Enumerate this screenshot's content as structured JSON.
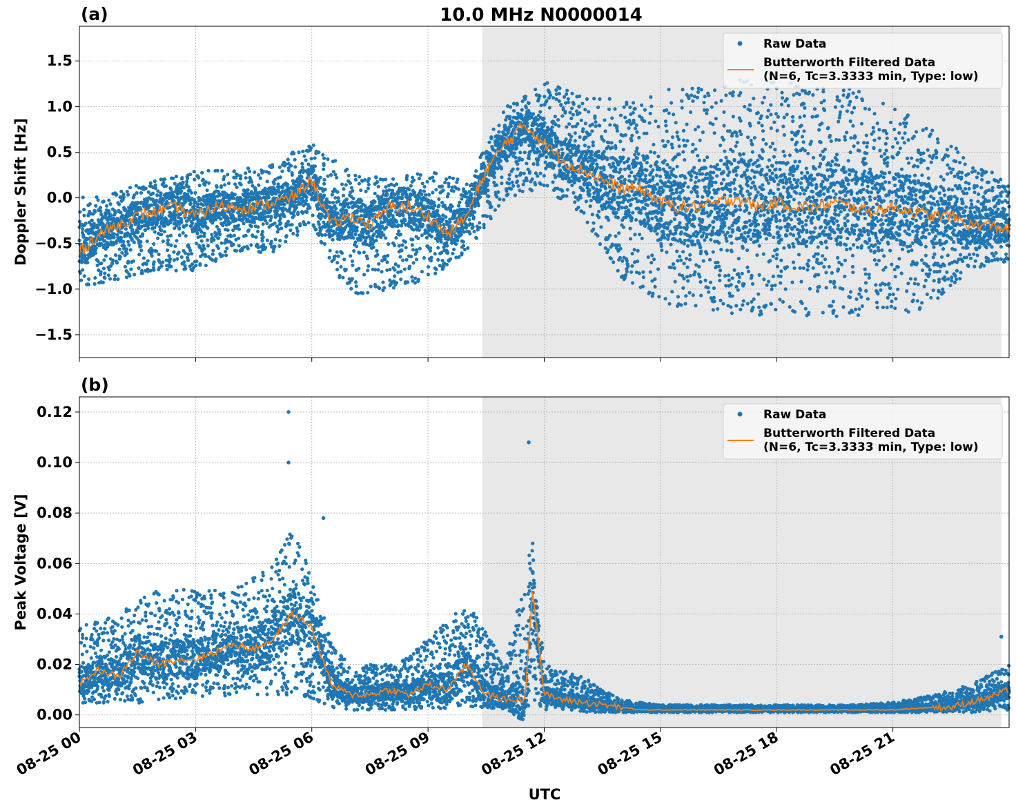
{
  "chart_data": {
    "type": "scatter",
    "title": "10.0 MHz N0000014",
    "xlabel": "UTC",
    "x_ticks": [
      "08-25 00",
      "08-25 03",
      "08-25 06",
      "08-25 09",
      "08-25 12",
      "08-25 15",
      "08-25 18",
      "08-25 21"
    ],
    "x_range_hours": [
      0,
      24
    ],
    "shaded_region_hours": [
      10.4,
      23.8
    ],
    "colors": {
      "raw": "#1f77b4",
      "filtered": "#ff7f0e",
      "shade": "#e8e8e8",
      "grid": "#b0b0b0"
    },
    "grid": true,
    "legend_placement": "upper right",
    "legend": {
      "raw_label": "Raw Data",
      "filtered_label_line1": "Butterworth Filtered Data",
      "filtered_label_line2": "(N=6, Tc=3.3333 min, Type: low)"
    },
    "panels": [
      {
        "label": "(a)",
        "ylabel": "Doppler Shift [Hz]",
        "ylim": [
          -1.75,
          1.88
        ],
        "y_ticks": [
          "1.5",
          "1.0",
          "0.5",
          "0.0",
          "−0.5",
          "−1.0",
          "−1.5"
        ],
        "y_tick_values": [
          1.5,
          1.0,
          0.5,
          0.0,
          -0.5,
          -1.0,
          -1.5
        ],
        "filtered": {
          "x_hours": [
            0,
            0.5,
            1,
            1.5,
            2,
            2.5,
            3,
            3.5,
            4,
            4.5,
            5,
            5.5,
            6,
            6.5,
            7,
            7.5,
            8,
            8.5,
            9,
            9.5,
            10,
            10.5,
            11,
            11.5,
            12,
            12.5,
            13,
            13.5,
            14,
            14.5,
            15,
            15.5,
            16,
            16.5,
            17,
            17.5,
            18,
            18.5,
            19,
            19.5,
            20,
            20.5,
            21,
            21.5,
            22,
            22.5,
            23,
            23.5,
            24
          ],
          "y": [
            -0.6,
            -0.4,
            -0.3,
            -0.2,
            -0.15,
            -0.1,
            -0.2,
            -0.1,
            -0.1,
            -0.1,
            -0.05,
            0,
            0.2,
            -0.3,
            -0.2,
            -0.3,
            -0.1,
            -0.1,
            -0.2,
            -0.4,
            -0.2,
            0.3,
            0.6,
            0.8,
            0.6,
            0.4,
            0.3,
            0.2,
            0.1,
            0.1,
            -0.05,
            -0.1,
            -0.1,
            -0.05,
            0,
            -0.1,
            -0.05,
            -0.1,
            -0.1,
            -0.05,
            -0.1,
            -0.15,
            -0.1,
            -0.15,
            -0.2,
            -0.2,
            -0.3,
            -0.3,
            -0.35
          ]
        },
        "raw_envelope": {
          "x_hours": [
            0,
            1,
            2,
            3,
            4,
            5,
            6,
            7,
            8,
            9,
            10,
            11,
            12,
            13,
            14,
            15,
            16,
            17,
            18,
            19,
            20,
            21,
            22,
            23,
            24
          ],
          "low": [
            -1.0,
            -0.9,
            -0.8,
            -0.8,
            -0.6,
            -0.6,
            -0.3,
            -1.1,
            -1.0,
            -0.9,
            -0.6,
            0.0,
            0.1,
            -0.2,
            -0.9,
            -1.2,
            -1.2,
            -1.3,
            -1.3,
            -1.3,
            -1.3,
            -1.3,
            -1.2,
            -0.8,
            -0.7
          ],
          "high": [
            0.0,
            0.1,
            0.2,
            0.3,
            0.3,
            0.4,
            0.6,
            0.3,
            0.2,
            0.3,
            0.2,
            1.0,
            1.3,
            1.1,
            1.1,
            1.2,
            1.2,
            1.3,
            1.3,
            1.2,
            1.2,
            1.0,
            0.8,
            0.4,
            0.2
          ]
        }
      },
      {
        "label": "(b)",
        "ylabel": "Peak Voltage [V]",
        "ylim": [
          -0.005,
          0.126
        ],
        "y_ticks": [
          "0.12",
          "0.10",
          "0.08",
          "0.06",
          "0.04",
          "0.02",
          "0.00"
        ],
        "y_tick_values": [
          0.12,
          0.1,
          0.08,
          0.06,
          0.04,
          0.02,
          0.0
        ],
        "filtered": {
          "x_hours": [
            0,
            0.5,
            1,
            1.5,
            2,
            2.5,
            3,
            3.5,
            4,
            4.5,
            5,
            5.5,
            6,
            6.5,
            7,
            7.5,
            8,
            8.5,
            9,
            9.5,
            10,
            10.5,
            11,
            11.5,
            11.7,
            12,
            12.5,
            13,
            13.5,
            14,
            14.5,
            15,
            16,
            17,
            18,
            19,
            20,
            21,
            22,
            22.5,
            23,
            23.5,
            24
          ],
          "y": [
            0.012,
            0.018,
            0.015,
            0.025,
            0.02,
            0.022,
            0.022,
            0.025,
            0.028,
            0.026,
            0.03,
            0.04,
            0.035,
            0.012,
            0.008,
            0.008,
            0.01,
            0.008,
            0.012,
            0.01,
            0.02,
            0.008,
            0.006,
            0.006,
            0.05,
            0.008,
            0.006,
            0.005,
            0.004,
            0.003,
            0.002,
            0.002,
            0.002,
            0.002,
            0.002,
            0.002,
            0.002,
            0.002,
            0.003,
            0.003,
            0.005,
            0.007,
            0.01
          ]
        },
        "raw_envelope": {
          "x_hours": [
            0,
            1,
            2,
            3,
            4,
            5,
            5.5,
            6,
            6.5,
            7,
            8,
            9,
            10,
            11,
            11.7,
            12,
            13,
            14,
            15,
            16,
            17,
            18,
            19,
            20,
            21,
            22,
            23,
            24
          ],
          "low": [
            0.004,
            0.004,
            0.005,
            0.006,
            0.008,
            0.008,
            0.008,
            0.006,
            0.003,
            0.002,
            0.002,
            0.002,
            0.003,
            0.002,
            0.003,
            0.002,
            0.001,
            0.001,
            0.001,
            0.001,
            0.001,
            0.001,
            0.001,
            0.001,
            0.001,
            0.001,
            0.001,
            0.002
          ],
          "high": [
            0.035,
            0.04,
            0.05,
            0.05,
            0.05,
            0.06,
            0.075,
            0.055,
            0.03,
            0.02,
            0.02,
            0.03,
            0.045,
            0.02,
            0.07,
            0.02,
            0.015,
            0.006,
            0.004,
            0.004,
            0.004,
            0.004,
            0.004,
            0.004,
            0.005,
            0.008,
            0.012,
            0.02
          ]
        },
        "spikes": [
          {
            "x_hour": 5.4,
            "y": 0.12
          },
          {
            "x_hour": 5.4,
            "y": 0.1
          },
          {
            "x_hour": 11.6,
            "y": 0.108
          },
          {
            "x_hour": 6.3,
            "y": 0.078
          },
          {
            "x_hour": 23.8,
            "y": 0.031
          }
        ]
      }
    ]
  }
}
